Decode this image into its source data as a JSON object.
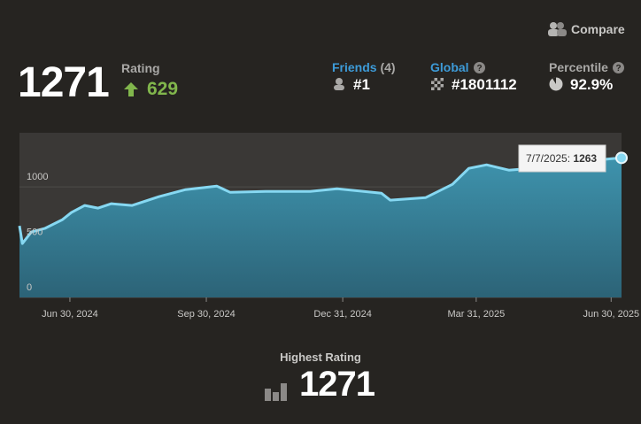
{
  "header": {
    "compare": "Compare",
    "rating": {
      "value": 1271,
      "label": "Rating",
      "change": 629
    },
    "friends": {
      "label": "Friends",
      "count": "(4)",
      "rank": "#1"
    },
    "global": {
      "label": "Global",
      "rank": "#1801112"
    },
    "percentile": {
      "label": "Percentile",
      "value": "92.9%"
    }
  },
  "chart_data": {
    "type": "line",
    "x": [
      "2024-05-27",
      "2024-05-29",
      "2024-06-04",
      "2024-06-13",
      "2024-06-25",
      "2024-07-01",
      "2024-07-10",
      "2024-07-19",
      "2024-07-28",
      "2024-08-11",
      "2024-08-29",
      "2024-09-16",
      "2024-10-07",
      "2024-10-16",
      "2024-11-09",
      "2024-12-09",
      "2024-12-27",
      "2025-01-26",
      "2025-02-01",
      "2025-02-25",
      "2025-03-15",
      "2025-03-26",
      "2025-04-07",
      "2025-04-22",
      "2025-05-07",
      "2025-05-31",
      "2025-06-24",
      "2025-07-07"
    ],
    "values": [
      648,
      488,
      592,
      624,
      704,
      768,
      832,
      808,
      848,
      832,
      912,
      976,
      1008,
      952,
      960,
      960,
      984,
      944,
      880,
      904,
      1024,
      1168,
      1200,
      1152,
      1168,
      1232,
      1248,
      1263
    ],
    "color": "#86d8f2",
    "xlim": [
      "2024-05-27",
      "2025-07-07"
    ],
    "xticks": [
      {
        "value": "2024-06-30",
        "label": "Jun 30, 2024"
      },
      {
        "value": "2024-09-30",
        "label": "Sep 30, 2024"
      },
      {
        "value": "2024-12-31",
        "label": "Dec 31, 2024"
      },
      {
        "value": "2025-03-31",
        "label": "Mar 31, 2025"
      },
      {
        "value": "2025-06-30",
        "label": "Jun 30, 2025"
      }
    ],
    "ylim": [
      0,
      1490
    ],
    "yticks": [
      0,
      500,
      1000
    ],
    "grid": true,
    "tooltip": {
      "label": "7/7/2025:",
      "value": 1263
    }
  },
  "highest": {
    "label": "Highest Rating",
    "value": 1271
  }
}
